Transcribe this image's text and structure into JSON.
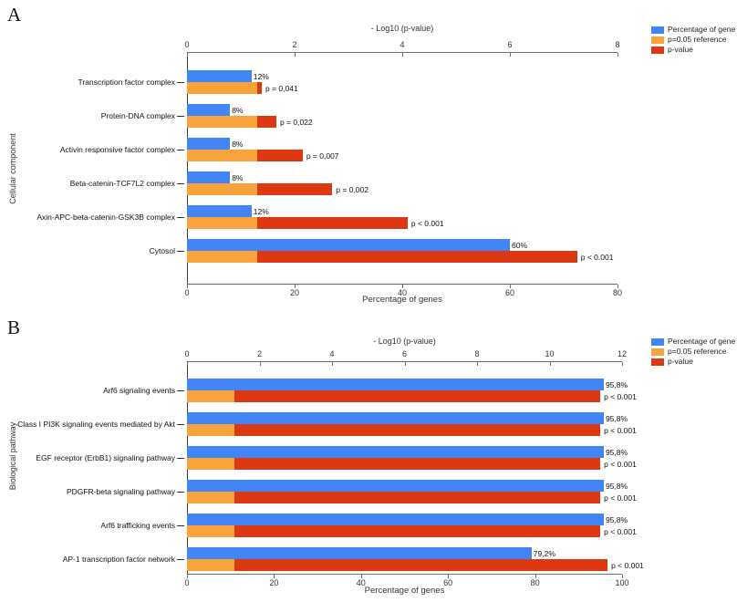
{
  "colors": {
    "percentage_bar": "#4285F4",
    "reference_bar": "#F8A33C",
    "pvalue_bar": "#DC3912",
    "axis_line": "#6e6e6e"
  },
  "figure": {
    "panels": [
      {
        "letter": "A",
        "legend": [
          {
            "label": "Percentage of gene",
            "color": "#4285F4"
          },
          {
            "label": "p=0.05 reference",
            "color": "#F8A33C"
          },
          {
            "label": "p-value",
            "color": "#DC3912"
          }
        ]
      },
      {
        "letter": "B",
        "legend": [
          {
            "label": "Percentage of gene",
            "color": "#4285F4"
          },
          {
            "label": "p=0.05 reference",
            "color": "#F8A33C"
          },
          {
            "label": "p-value",
            "color": "#DC3912"
          }
        ]
      }
    ]
  },
  "chart_data": [
    {
      "type": "bar",
      "orientation": "horizontal",
      "panel": "A",
      "category_axis_label": "Cellular component",
      "top_axis": {
        "label": "- Log10 (p-value)",
        "range": [
          0,
          8
        ],
        "ticks": [
          0,
          2,
          4,
          6,
          8
        ]
      },
      "bottom_axis": {
        "label": "Percentage of genes",
        "range": [
          0,
          80
        ],
        "ticks": [
          0,
          20,
          40,
          60,
          80
        ]
      },
      "reference_log10": 1.301,
      "legend_position": "top-right",
      "grid": false,
      "categories": [
        "Transcription factor complex",
        "Protein-DNA complex",
        "Activin responsive factor complex",
        "Beta-catenin-TCF7L2 complex",
        "Axin-APC-beta-catenin-GSK3B complex",
        "Cytosol"
      ],
      "series": [
        {
          "name": "Percentage of gene",
          "axis": "bottom",
          "values": [
            12,
            8,
            8,
            8,
            12,
            60
          ],
          "labels": [
            "12%",
            "8%",
            "8%",
            "8%",
            "12%",
            "60%"
          ]
        },
        {
          "name": "p-value (-Log10)",
          "axis": "top",
          "values": [
            1.39,
            1.66,
            2.15,
            2.7,
            4.1,
            7.25
          ],
          "labels": [
            "p = 0,041",
            "p = 0,022",
            "p = 0,007",
            "p = 0,002",
            "p < 0.001",
            "p < 0.001"
          ]
        }
      ]
    },
    {
      "type": "bar",
      "orientation": "horizontal",
      "panel": "B",
      "category_axis_label": "Biological pathway",
      "top_axis": {
        "label": "- Log10 (p-value)",
        "range": [
          0,
          12
        ],
        "ticks": [
          0,
          2,
          4,
          6,
          8,
          10,
          12
        ]
      },
      "bottom_axis": {
        "label": "Percentage of genes",
        "range": [
          0,
          100
        ],
        "ticks": [
          0,
          20,
          40,
          60,
          80,
          100
        ]
      },
      "reference_log10": 1.301,
      "legend_position": "top-right",
      "grid": false,
      "categories": [
        "Arf6 signaling events",
        "Class I PI3K signaling events mediated by Akt",
        "EGF receptor (ErbB1) signaling pathway",
        "PDGFR-beta signaling pathway",
        "Arf6 trafficking events",
        "AP-1 transcription factor network"
      ],
      "series": [
        {
          "name": "Percentage of gene",
          "axis": "bottom",
          "values": [
            95.8,
            95.8,
            95.8,
            95.8,
            95.8,
            79.2
          ],
          "labels": [
            "95,8%",
            "95,8%",
            "95,8%",
            "95,8%",
            "95,8%",
            "79,2%"
          ]
        },
        {
          "name": "p-value (-Log10)",
          "axis": "top",
          "values": [
            11.4,
            11.4,
            11.4,
            11.4,
            11.4,
            11.6
          ],
          "labels": [
            "p < 0.001",
            "p < 0.001",
            "p < 0.001",
            "p < 0.001",
            "p < 0.001",
            "p < 0.001"
          ]
        }
      ]
    }
  ]
}
